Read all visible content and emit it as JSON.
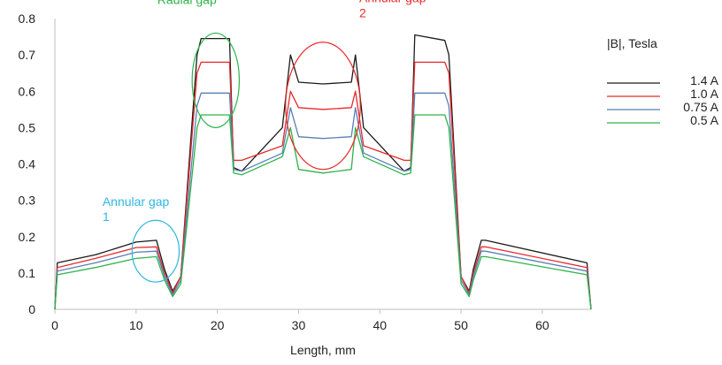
{
  "chart_data": {
    "type": "line",
    "title": "",
    "xlabel": "Length, mm",
    "ylabel": "",
    "xlim": [
      0,
      66
    ],
    "ylim": [
      0,
      0.8
    ],
    "x_ticks": [
      "0",
      "10",
      "20",
      "30",
      "40",
      "50",
      "60"
    ],
    "y_ticks": [
      "0",
      "0.1",
      "0.2",
      "0.3",
      "0.4",
      "0.5",
      "0.6",
      "0.7",
      "0.8"
    ],
    "grid": false,
    "legend_title": "|B|, Tesla",
    "legend_position": "right",
    "x": [
      0,
      0.3,
      5,
      10,
      12.5,
      13.5,
      14.5,
      15.5,
      17.5,
      18,
      21.5,
      22,
      23,
      28,
      29,
      30,
      33,
      36.5,
      37,
      38,
      43,
      43.8,
      44.3,
      48,
      48.5,
      50,
      51,
      51.5,
      52.5,
      53,
      65.5,
      66
    ],
    "series": [
      {
        "name": "1.4 A",
        "color": "#1a1a1a",
        "values": [
          0.0,
          0.128,
          0.15,
          0.185,
          0.19,
          0.11,
          0.05,
          0.09,
          0.7,
          0.745,
          0.745,
          0.39,
          0.38,
          0.5,
          0.7,
          0.625,
          0.62,
          0.625,
          0.7,
          0.5,
          0.38,
          0.39,
          0.755,
          0.74,
          0.7,
          0.09,
          0.05,
          0.11,
          0.19,
          0.19,
          0.128,
          0.0
        ]
      },
      {
        "name": "1.0 A",
        "color": "#e8292a",
        "values": [
          0.0,
          0.115,
          0.14,
          0.17,
          0.172,
          0.1,
          0.045,
          0.09,
          0.65,
          0.68,
          0.68,
          0.41,
          0.41,
          0.45,
          0.6,
          0.555,
          0.55,
          0.555,
          0.6,
          0.45,
          0.41,
          0.41,
          0.68,
          0.68,
          0.65,
          0.09,
          0.045,
          0.1,
          0.172,
          0.172,
          0.115,
          0.0
        ]
      },
      {
        "name": "0.75 A",
        "color": "#5a7fb5",
        "values": [
          0.0,
          0.105,
          0.128,
          0.157,
          0.16,
          0.09,
          0.04,
          0.08,
          0.56,
          0.595,
          0.595,
          0.385,
          0.38,
          0.43,
          0.555,
          0.475,
          0.47,
          0.475,
          0.555,
          0.43,
          0.38,
          0.385,
          0.595,
          0.595,
          0.56,
          0.08,
          0.04,
          0.09,
          0.16,
          0.16,
          0.105,
          0.0
        ]
      },
      {
        "name": "0.5 A",
        "color": "#2db34a",
        "values": [
          0.0,
          0.095,
          0.115,
          0.14,
          0.145,
          0.08,
          0.035,
          0.07,
          0.5,
          0.535,
          0.535,
          0.375,
          0.37,
          0.42,
          0.5,
          0.385,
          0.375,
          0.385,
          0.5,
          0.42,
          0.37,
          0.375,
          0.535,
          0.535,
          0.5,
          0.07,
          0.035,
          0.08,
          0.145,
          0.145,
          0.095,
          0.0
        ]
      }
    ],
    "annotations": [
      {
        "text": [
          "Radial gap"
        ],
        "color": "#2db34a",
        "x": 19.8,
        "y": 0.63,
        "rx": 2.9,
        "ry": 0.13
      },
      {
        "text": [
          "Annular gap",
          "2"
        ],
        "color": "#e8292a",
        "x": 33,
        "y": 0.56,
        "rx": 4.6,
        "ry": 0.175
      },
      {
        "text": [
          "Annular gap",
          "1"
        ],
        "color": "#2eb7e0",
        "x": 12.4,
        "y": 0.16,
        "rx": 2.9,
        "ry": 0.085
      }
    ]
  }
}
